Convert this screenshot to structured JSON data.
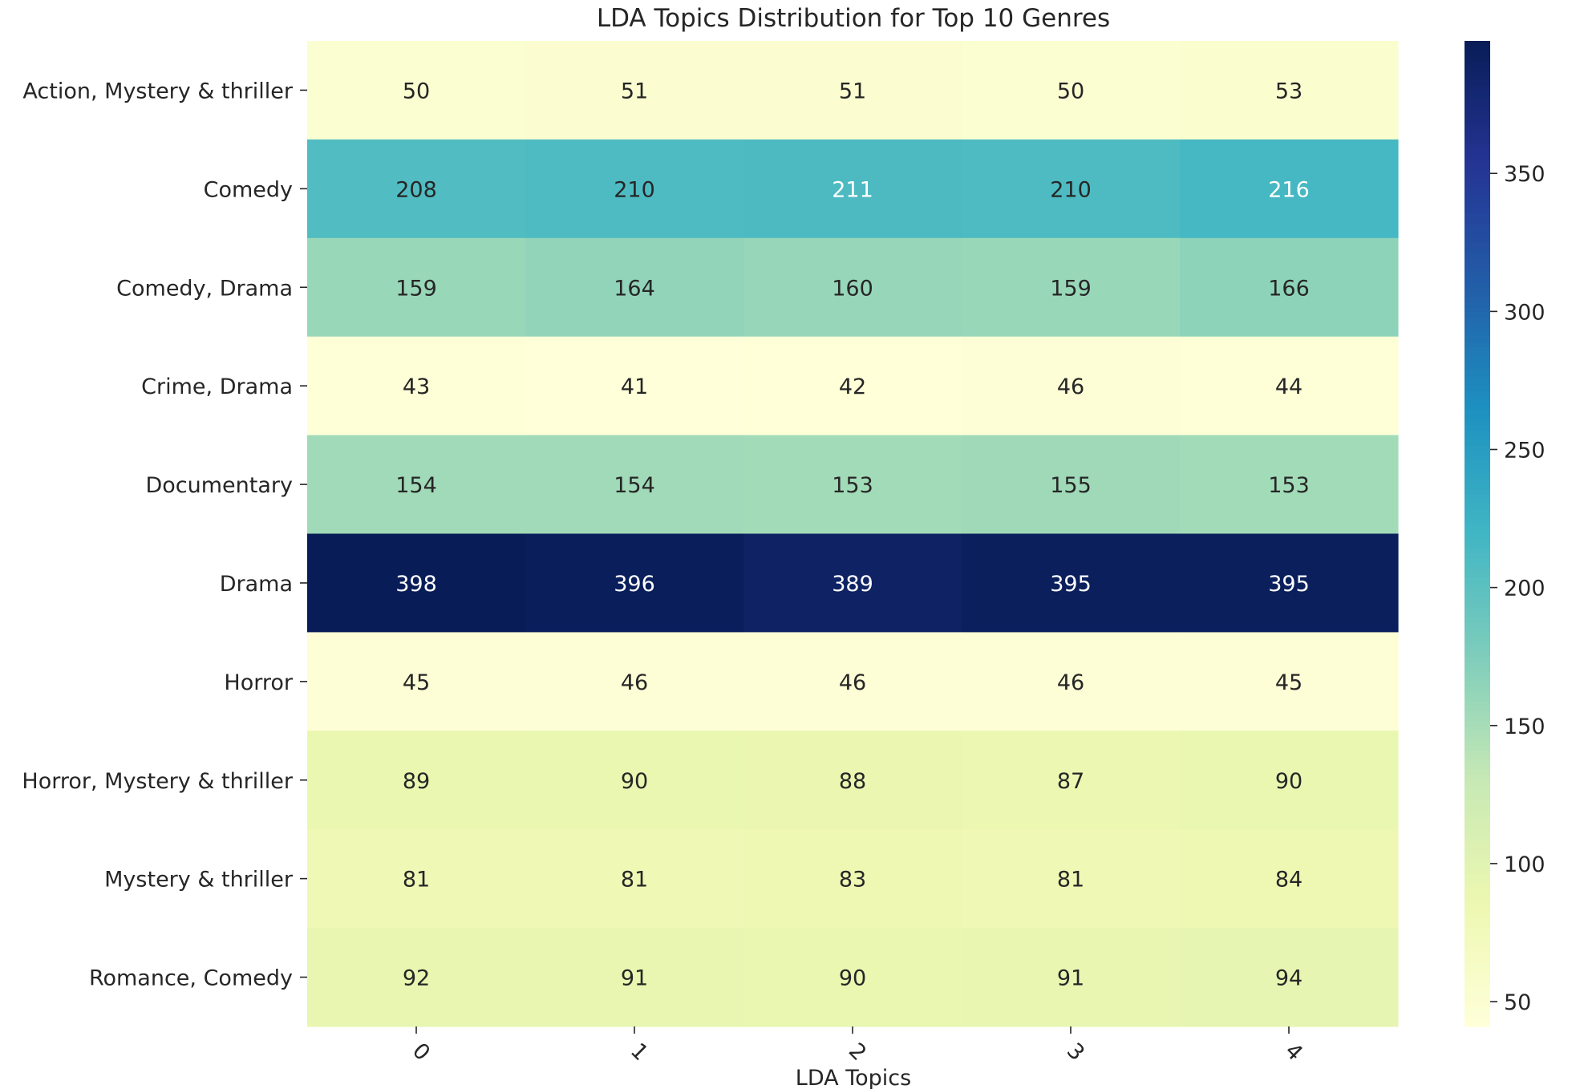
{
  "chart_data": {
    "type": "heatmap",
    "title": "LDA Topics Distribution for Top 10 Genres",
    "xlabel": "LDA Topics",
    "ylabel": "",
    "x_categories": [
      "0",
      "1",
      "2",
      "3",
      "4"
    ],
    "y_categories": [
      "Action, Mystery & thriller",
      "Comedy",
      "Comedy, Drama",
      "Crime, Drama",
      "Documentary",
      "Drama",
      "Horror",
      "Horror, Mystery & thriller",
      "Mystery & thriller",
      "Romance, Comedy"
    ],
    "values": [
      [
        50,
        51,
        51,
        50,
        53
      ],
      [
        208,
        210,
        211,
        210,
        216
      ],
      [
        159,
        164,
        160,
        159,
        166
      ],
      [
        43,
        41,
        42,
        46,
        44
      ],
      [
        154,
        154,
        153,
        155,
        153
      ],
      [
        398,
        396,
        389,
        395,
        395
      ],
      [
        45,
        46,
        46,
        46,
        45
      ],
      [
        89,
        90,
        88,
        87,
        90
      ],
      [
        81,
        81,
        83,
        81,
        84
      ],
      [
        92,
        91,
        90,
        91,
        94
      ]
    ],
    "colorbar": {
      "colormap": "YlGnBu",
      "vmin": 41,
      "vmax": 398,
      "ticks": [
        50,
        100,
        150,
        200,
        250,
        300,
        350
      ]
    },
    "annotations": true,
    "grid": false,
    "legend": "colorbar-right"
  }
}
